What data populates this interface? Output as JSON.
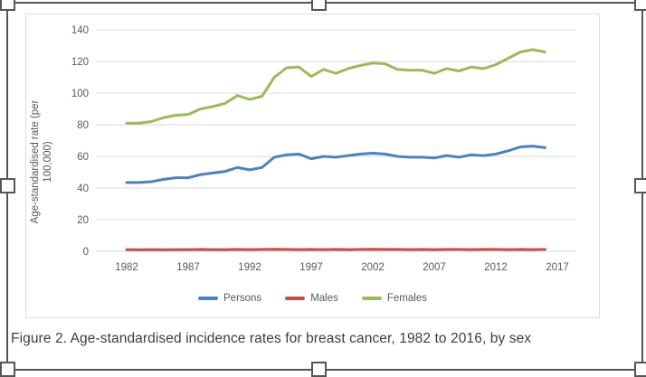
{
  "page": {
    "caption": "Figure 2. Age-standardised incidence rates for breast cancer, 1982 to 2016, by sex"
  },
  "selection": {
    "border_color": "#565656",
    "handle_fill": "#ffffff"
  },
  "chart_data": {
    "type": "line",
    "title": "",
    "xlabel": "",
    "ylabel": "Age-standardised rate (per 100,000)",
    "ylabel_lines": [
      "Age-standardised rate (per",
      "100,000)"
    ],
    "ylim": [
      0,
      140
    ],
    "yticks": [
      0,
      20,
      40,
      60,
      80,
      100,
      120,
      140
    ],
    "xticks": [
      1982,
      1987,
      1992,
      1997,
      2002,
      2007,
      2012,
      2017
    ],
    "grid": true,
    "gridline_color": "#d9d9d9",
    "axis_text_color": "#595959",
    "legend_position": "bottom",
    "x": [
      1982,
      1983,
      1984,
      1985,
      1986,
      1987,
      1988,
      1989,
      1990,
      1991,
      1992,
      1993,
      1994,
      1995,
      1996,
      1997,
      1998,
      1999,
      2000,
      2001,
      2002,
      2003,
      2004,
      2005,
      2006,
      2007,
      2008,
      2009,
      2010,
      2011,
      2012,
      2013,
      2014,
      2015,
      2016
    ],
    "series": [
      {
        "name": "Persons",
        "color": "#4f81bd",
        "values": [
          43.5,
          43.5,
          44,
          45.5,
          46.5,
          46.5,
          48.5,
          49.5,
          50.5,
          53,
          51.5,
          53,
          59.5,
          61,
          61.5,
          58.5,
          60,
          59.5,
          60.5,
          61.5,
          62,
          61.5,
          60,
          59.5,
          59.5,
          59,
          60.5,
          59.5,
          61,
          60.5,
          61.5,
          63.5,
          66,
          66.5,
          65.5
        ]
      },
      {
        "name": "Males",
        "color": "#c0504d",
        "values": [
          1.1,
          1.0,
          1.1,
          1.0,
          1.1,
          1.1,
          1.2,
          1.1,
          1.1,
          1.2,
          1.1,
          1.2,
          1.3,
          1.2,
          1.1,
          1.2,
          1.1,
          1.2,
          1.1,
          1.2,
          1.3,
          1.2,
          1.2,
          1.1,
          1.2,
          1.1,
          1.2,
          1.2,
          1.1,
          1.2,
          1.2,
          1.1,
          1.2,
          1.1,
          1.2
        ]
      },
      {
        "name": "Females",
        "color": "#9bbb59",
        "values": [
          81,
          81,
          82,
          84.5,
          86,
          86.5,
          90,
          91.5,
          93.5,
          98.5,
          96,
          98,
          110,
          116,
          116.5,
          110.5,
          115,
          112.5,
          115.5,
          117.5,
          119,
          118.5,
          115,
          114.5,
          114.5,
          112.5,
          115.5,
          114,
          116.5,
          115.5,
          118,
          122,
          126,
          127.5,
          126
        ]
      }
    ]
  }
}
